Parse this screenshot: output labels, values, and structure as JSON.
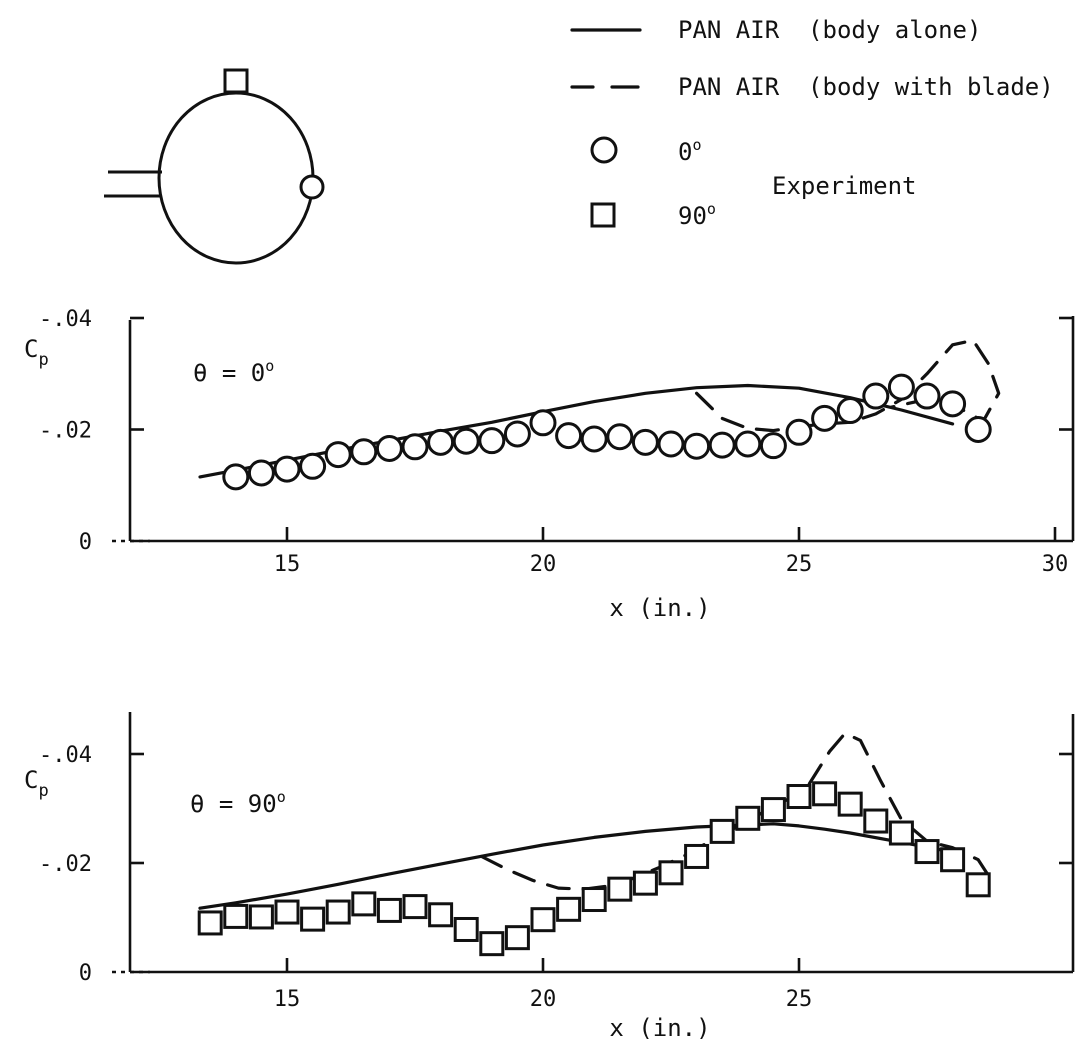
{
  "legend": {
    "items": [
      {
        "style": "solid",
        "label": "PAN AIR  (body alone)"
      },
      {
        "style": "dashed",
        "label": "PAN AIR  (body with blade)"
      },
      {
        "marker": "circle",
        "label": "0",
        "sup": "o"
      },
      {
        "marker": "square",
        "label": "90",
        "sup": "o"
      }
    ],
    "group_label": "Experiment"
  },
  "chart_data": [
    {
      "type": "line",
      "annotation": "θ = 0",
      "annotation_sup": "o",
      "xlabel": "x (in.)",
      "ylabel": "C",
      "ylabel_sub": "p",
      "xlim": [
        11,
        30
      ],
      "ylim": [
        0,
        -0.045
      ],
      "yaxis_inverted": true,
      "xticks": [
        15,
        20,
        25,
        30
      ],
      "xtick_labels": [
        "15",
        "20",
        "25",
        "30"
      ],
      "yticks": [
        0,
        -0.02,
        -0.04
      ],
      "ytick_labels": [
        "0",
        "-.02",
        "-.04"
      ],
      "grid": false,
      "series": [
        {
          "name": "PAN AIR (body alone)",
          "style": "solid",
          "x": [
            13.3,
            14,
            15,
            16,
            17,
            18,
            19,
            20,
            21,
            22,
            23,
            24,
            25,
            26,
            27,
            28
          ],
          "y": [
            -0.0115,
            -0.0127,
            -0.0145,
            -0.0163,
            -0.018,
            -0.0197,
            -0.0213,
            -0.0232,
            -0.025,
            -0.0265,
            -0.0275,
            -0.0279,
            -0.0274,
            -0.0257,
            -0.0235,
            -0.021
          ]
        },
        {
          "name": "PAN AIR (body with blade)",
          "style": "dashed",
          "x": [
            23,
            23.5,
            24,
            24.5,
            25,
            25.5,
            26,
            26.5,
            27,
            27.5,
            28,
            28.4,
            28.7,
            28.9,
            28.6,
            28.2,
            27.8,
            27.3,
            26.8
          ],
          "y": [
            -0.0265,
            -0.022,
            -0.0202,
            -0.0198,
            -0.0205,
            -0.021,
            -0.0213,
            -0.0228,
            -0.0254,
            -0.03,
            -0.0352,
            -0.036,
            -0.0318,
            -0.0265,
            -0.0215,
            -0.0235,
            -0.025,
            -0.025,
            -0.024
          ]
        },
        {
          "name": "0",
          "marker": "circle",
          "x": [
            14,
            14.5,
            15,
            15.5,
            16,
            16.5,
            17,
            17.5,
            18,
            18.5,
            19,
            19.5,
            20,
            20.5,
            21,
            21.5,
            22,
            22.5,
            23,
            23.5,
            24,
            24.5,
            25,
            25.5,
            26,
            26.5,
            27,
            27.5,
            28,
            28.5
          ],
          "y": [
            -0.0115,
            -0.0122,
            -0.0129,
            -0.0134,
            -0.0155,
            -0.016,
            -0.0166,
            -0.0169,
            -0.0177,
            -0.0179,
            -0.018,
            -0.0192,
            -0.0212,
            -0.0189,
            -0.0183,
            -0.0187,
            -0.0177,
            -0.0174,
            -0.017,
            -0.0172,
            -0.0174,
            -0.0171,
            -0.0195,
            -0.022,
            -0.0234,
            -0.026,
            -0.0276,
            -0.026,
            -0.0246,
            -0.02
          ]
        }
      ]
    },
    {
      "type": "line",
      "annotation": "θ = 90",
      "annotation_sup": "o",
      "xlabel": "x (in.)",
      "ylabel": "C",
      "ylabel_sub": "p",
      "xlim": [
        11,
        30
      ],
      "ylim": [
        0,
        -0.048
      ],
      "yaxis_inverted": true,
      "xticks": [
        15,
        20,
        25
      ],
      "xtick_labels": [
        "15",
        "20",
        "25"
      ],
      "yticks": [
        0,
        -0.02,
        -0.04
      ],
      "ytick_labels": [
        "0",
        "-.02",
        "-.04"
      ],
      "grid": false,
      "series": [
        {
          "name": "PAN AIR (body alone)",
          "style": "solid",
          "x": [
            13.3,
            14,
            15,
            16,
            17,
            18,
            19,
            20,
            21,
            22,
            23,
            24,
            24.5,
            25,
            25.5,
            26,
            27,
            28
          ],
          "y": [
            -0.0117,
            -0.0127,
            -0.0143,
            -0.0161,
            -0.018,
            -0.0198,
            -0.0216,
            -0.0233,
            -0.0247,
            -0.0258,
            -0.0266,
            -0.027,
            -0.0272,
            -0.0268,
            -0.0262,
            -0.0255,
            -0.0238,
            -0.022
          ]
        },
        {
          "name": "PAN AIR (body with blade)",
          "style": "dashed",
          "x": [
            18.8,
            19.3,
            19.8,
            20.3,
            20.8,
            21.3,
            21.8,
            22.3,
            22.8,
            23.3,
            23.8,
            24.3,
            24.8,
            25.2,
            25.6,
            25.9,
            26.2,
            26.6,
            27,
            27.5,
            28,
            28.5,
            28.7
          ],
          "y": [
            -0.0212,
            -0.0188,
            -0.0168,
            -0.0154,
            -0.0152,
            -0.0158,
            -0.0173,
            -0.0193,
            -0.0215,
            -0.0242,
            -0.0267,
            -0.0293,
            -0.0318,
            -0.0345,
            -0.0405,
            -0.0438,
            -0.0425,
            -0.035,
            -0.028,
            -0.024,
            -0.0228,
            -0.0206,
            -0.0177
          ]
        },
        {
          "name": "90",
          "marker": "square",
          "x": [
            13.5,
            14,
            14.5,
            15,
            15.5,
            16,
            16.5,
            17,
            17.5,
            18,
            18.5,
            19,
            19.5,
            20,
            20.5,
            21,
            21.5,
            22,
            22.5,
            23,
            23.5,
            24,
            24.5,
            25,
            25.5,
            26,
            26.5,
            27,
            27.5,
            28,
            28.5
          ],
          "y": [
            -0.009,
            -0.0102,
            -0.0101,
            -0.011,
            -0.0097,
            -0.011,
            -0.0125,
            -0.0113,
            -0.012,
            -0.0105,
            -0.0078,
            -0.0052,
            -0.0063,
            -0.0096,
            -0.0115,
            -0.0133,
            -0.0152,
            -0.0163,
            -0.0182,
            -0.0212,
            -0.0258,
            -0.0282,
            -0.0298,
            -0.0322,
            -0.0327,
            -0.0308,
            -0.0277,
            -0.0255,
            -0.0221,
            -0.0206,
            -0.016
          ]
        }
      ]
    }
  ]
}
